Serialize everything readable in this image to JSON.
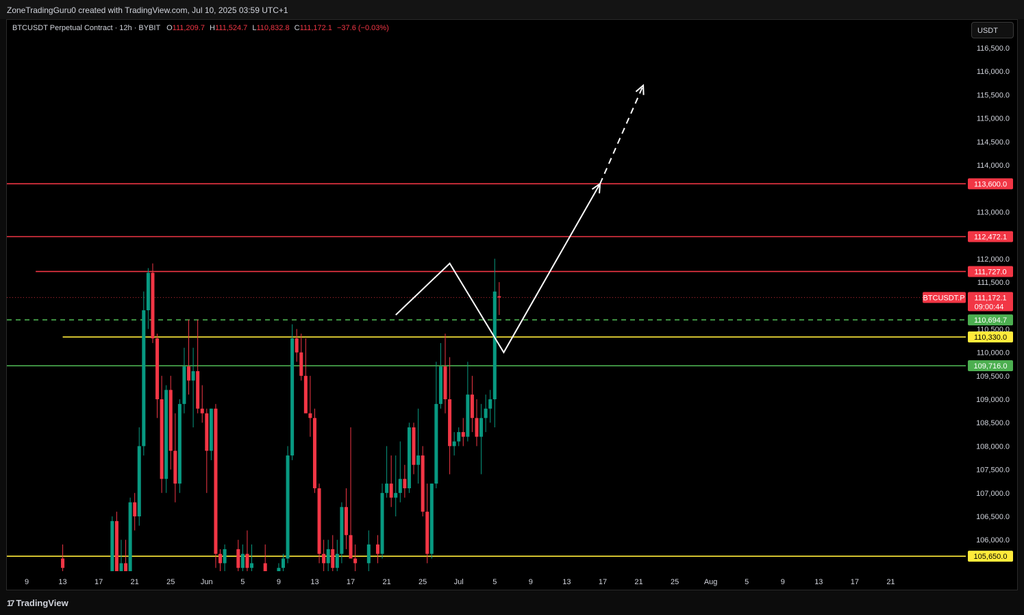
{
  "header": {
    "text": "ZoneTradingGuru0 created with TradingView.com, Jul 10, 2025 03:59 UTC+1"
  },
  "legend": {
    "symbol": "BTCUSDT Perpetual Contract · 12h · BYBIT",
    "o_label": "O",
    "o_value": "111,209.7",
    "h_label": "H",
    "h_value": "111,524.7",
    "l_label": "L",
    "l_value": "110,832.8",
    "c_label": "C",
    "c_value": "111,172.1",
    "change": "−37.6 (−0.03%)"
  },
  "currency_button": "USDT",
  "footer": {
    "logo_text": "TradingView",
    "logo_mark": "17"
  },
  "colors": {
    "up": "#089981",
    "down": "#f23645",
    "yellow": "#ffeb3b",
    "green_line": "#4caf50",
    "background": "#000000"
  },
  "chart_data": {
    "type": "candlestick",
    "symbol_tag": "BTCUSDT.P",
    "ylim": [
      105400,
      117000
    ],
    "y_ticks": [
      "116,500.0",
      "116,000.0",
      "115,500.0",
      "115,000.0",
      "114,500.0",
      "114,000.0",
      "113,000.0",
      "112,000.0",
      "111,500.0",
      "110,500.0",
      "110,000.0",
      "109,500.0",
      "109,000.0",
      "108,500.0",
      "108,000.0",
      "107,500.0",
      "107,000.0",
      "106,500.0",
      "106,000.0"
    ],
    "x_ticks": [
      "9",
      "13",
      "17",
      "21",
      "25",
      "Jun",
      "5",
      "9",
      "13",
      "17",
      "21",
      "25",
      "Jul",
      "5",
      "9",
      "13",
      "17",
      "21",
      "25",
      "Aug",
      "5",
      "9",
      "13",
      "17",
      "21"
    ],
    "levels": [
      {
        "value": 113600.0,
        "label": "113,600.0",
        "color": "#f23645",
        "style": "solid",
        "start_day": -5
      },
      {
        "value": 112472.1,
        "label": "112,472.1",
        "color": "#f23645",
        "style": "solid",
        "start_day": -8
      },
      {
        "value": 111727.0,
        "label": "111,727.0",
        "color": "#f23645",
        "style": "solid",
        "start_day": 1
      },
      {
        "value": 110694.7,
        "label": "110,694.7",
        "color": "#4caf50",
        "style": "dashed",
        "start_day": -15
      },
      {
        "value": 110330.0,
        "label": "110,330.0",
        "color": "#ffeb3b",
        "style": "solid",
        "start_day": 4
      },
      {
        "value": 109716.0,
        "label": "109,716.0",
        "color": "#4caf50",
        "style": "solid",
        "start_day": -15
      },
      {
        "value": 105650.0,
        "label": "105,650.0",
        "color": "#ffeb3b",
        "style": "solid",
        "start_day": -15
      }
    ],
    "last_price": {
      "value": 111172.1,
      "label": "111,172.1",
      "countdown": "09:00:44"
    },
    "projection": {
      "solid": [
        [
          41.0,
          110800
        ],
        [
          47.0,
          111900
        ],
        [
          53.0,
          110000
        ],
        [
          63.7,
          113600
        ]
      ],
      "dashed": [
        [
          63.7,
          113600
        ],
        [
          68.5,
          115700
        ]
      ]
    },
    "candles": [
      [
        4.0,
        105600,
        105900,
        105200,
        105400
      ],
      [
        9.5,
        105200,
        106500,
        105000,
        106400
      ],
      [
        10.0,
        106400,
        106600,
        105200,
        105300
      ],
      [
        10.5,
        105300,
        106000,
        105100,
        105500
      ],
      [
        11.0,
        105500,
        106000,
        105100,
        105300
      ],
      [
        11.5,
        105300,
        106900,
        105200,
        106800
      ],
      [
        12.0,
        106800,
        107000,
        106200,
        106500
      ],
      [
        12.5,
        106500,
        108400,
        106300,
        108000
      ],
      [
        13.0,
        108000,
        111300,
        107800,
        110900
      ],
      [
        13.5,
        110900,
        111800,
        110500,
        111700
      ],
      [
        14.0,
        111700,
        111900,
        110200,
        110300
      ],
      [
        14.5,
        110300,
        110400,
        108600,
        109000
      ],
      [
        15.0,
        109000,
        109500,
        107000,
        107300
      ],
      [
        15.5,
        107300,
        109300,
        107000,
        109200
      ],
      [
        16.0,
        109200,
        109500,
        107500,
        107900
      ],
      [
        16.5,
        107900,
        108700,
        106800,
        107200
      ],
      [
        17.0,
        107200,
        109000,
        107000,
        108900
      ],
      [
        17.5,
        108900,
        110100,
        108700,
        109700
      ],
      [
        18.0,
        109700,
        110700,
        109100,
        109400
      ],
      [
        18.5,
        109400,
        110100,
        108400,
        109600
      ],
      [
        19.0,
        109600,
        110700,
        108700,
        108800
      ],
      [
        19.5,
        108800,
        109300,
        108500,
        108700
      ],
      [
        20.0,
        108700,
        108800,
        107000,
        107900
      ],
      [
        20.5,
        107900,
        108800,
        107700,
        108800
      ],
      [
        21.0,
        108800,
        108900,
        105400,
        105700
      ],
      [
        21.5,
        105700,
        105800,
        105200,
        105500
      ],
      [
        22.0,
        105500,
        105900,
        105100,
        105800
      ],
      [
        23.5,
        105800,
        106000,
        105300,
        105400
      ],
      [
        24.0,
        105400,
        105900,
        105200,
        105700
      ],
      [
        24.5,
        105700,
        106200,
        105300,
        105400
      ],
      [
        25.0,
        105400,
        105900,
        105200,
        105500
      ],
      [
        26.5,
        105500,
        105900,
        105100,
        105300
      ],
      [
        28.0,
        105300,
        105500,
        105100,
        105400
      ],
      [
        28.5,
        105400,
        105700,
        105200,
        105600
      ],
      [
        29.0,
        105600,
        108000,
        105500,
        107800
      ],
      [
        29.5,
        107800,
        110600,
        107700,
        110300
      ],
      [
        30.0,
        110300,
        110500,
        109800,
        110000
      ],
      [
        30.5,
        110000,
        110400,
        109400,
        109500
      ],
      [
        31.0,
        109500,
        110300,
        108800,
        108700
      ],
      [
        31.5,
        108700,
        109500,
        108200,
        108600
      ],
      [
        32.0,
        108600,
        108800,
        107000,
        107100
      ],
      [
        32.5,
        107100,
        107200,
        105500,
        105700
      ],
      [
        33.0,
        105700,
        106000,
        105200,
        105500
      ],
      [
        33.5,
        105500,
        106000,
        105300,
        105800
      ],
      [
        34.0,
        105800,
        106100,
        105300,
        105400
      ],
      [
        34.5,
        105400,
        106000,
        105200,
        105700
      ],
      [
        35.0,
        105700,
        106800,
        105500,
        106700
      ],
      [
        35.5,
        106700,
        107100,
        105800,
        106100
      ],
      [
        36.0,
        106100,
        108400,
        105600,
        105600
      ],
      [
        36.5,
        105600,
        105900,
        105300,
        105500
      ],
      [
        38.0,
        105500,
        106200,
        105200,
        105900
      ],
      [
        39.0,
        105900,
        106100,
        105500,
        105700
      ],
      [
        39.5,
        105700,
        107200,
        105600,
        107000
      ],
      [
        40.0,
        107000,
        108000,
        106900,
        107200
      ],
      [
        40.5,
        107200,
        107800,
        106700,
        106900
      ],
      [
        41.0,
        106900,
        107800,
        106500,
        107000
      ],
      [
        41.5,
        107000,
        108100,
        106800,
        107300
      ],
      [
        42.0,
        107300,
        107600,
        106900,
        107100
      ],
      [
        42.5,
        107100,
        108500,
        107000,
        108400
      ],
      [
        43.0,
        108400,
        108500,
        107400,
        107600
      ],
      [
        43.5,
        107600,
        108800,
        107200,
        107800
      ],
      [
        44.0,
        107800,
        108000,
        106500,
        106600
      ],
      [
        44.5,
        106600,
        107200,
        105500,
        105700
      ],
      [
        45.0,
        105700,
        107200,
        105600,
        107200
      ],
      [
        45.5,
        107200,
        109800,
        107100,
        108900
      ],
      [
        46.0,
        108900,
        110200,
        108800,
        109700
      ],
      [
        46.5,
        109700,
        110400,
        108700,
        109000
      ],
      [
        47.0,
        109000,
        109900,
        107400,
        108000
      ],
      [
        47.5,
        108000,
        108300,
        107800,
        108100
      ],
      [
        48.0,
        108100,
        108400,
        108000,
        108300
      ],
      [
        48.5,
        108300,
        108600,
        108000,
        108200
      ],
      [
        49.0,
        108200,
        109800,
        108100,
        109100
      ],
      [
        49.5,
        109100,
        109500,
        108300,
        108600
      ],
      [
        50.0,
        108600,
        109000,
        108000,
        108200
      ],
      [
        50.5,
        108200,
        108900,
        107400,
        108600
      ],
      [
        51.0,
        108600,
        109100,
        108300,
        108800
      ],
      [
        51.5,
        108800,
        109200,
        108500,
        109000
      ],
      [
        52.0,
        109000,
        112000,
        108400,
        111300
      ],
      [
        52.5,
        111200,
        111500,
        110800,
        111172
      ]
    ]
  }
}
